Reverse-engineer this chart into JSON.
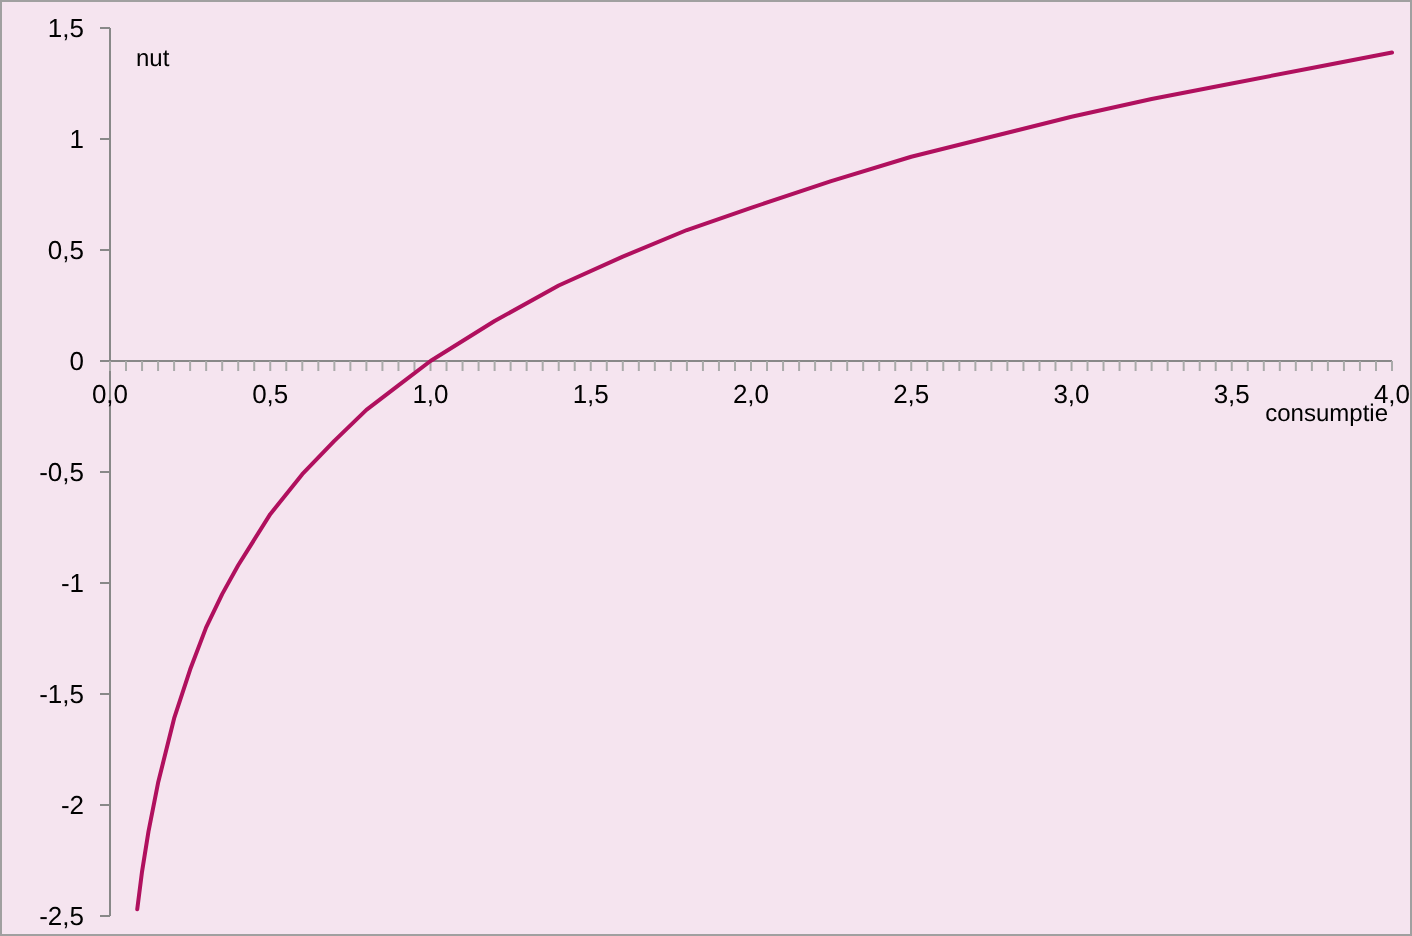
{
  "chart_data": {
    "type": "line",
    "xlabel": "consumptie",
    "ylabel": "nut",
    "x": [
      0.085,
      0.1,
      0.12,
      0.15,
      0.2,
      0.25,
      0.3,
      0.35,
      0.4,
      0.5,
      0.6,
      0.7,
      0.8,
      0.9,
      1.0,
      1.2,
      1.4,
      1.6,
      1.8,
      2.0,
      2.25,
      2.5,
      2.75,
      3.0,
      3.25,
      3.5,
      3.75,
      4.0
    ],
    "series": [
      {
        "color": "#b0105e",
        "values": [
          -2.47,
          -2.3,
          -2.12,
          -1.9,
          -1.61,
          -1.39,
          -1.2,
          -1.05,
          -0.92,
          -0.69,
          -0.51,
          -0.36,
          -0.22,
          -0.11,
          0,
          0.18,
          0.34,
          0.47,
          0.59,
          0.69,
          0.81,
          0.92,
          1.01,
          1.1,
          1.18,
          1.25,
          1.32,
          1.39
        ]
      }
    ],
    "xlim": [
      0,
      4
    ],
    "ylim": [
      -2.5,
      1.5
    ],
    "xticks": [
      {
        "value": 0,
        "label": "0,0"
      },
      {
        "value": 0.05,
        "label": null
      },
      {
        "value": 0.1,
        "label": null
      },
      {
        "value": 0.15,
        "label": null
      },
      {
        "value": 0.2,
        "label": null
      },
      {
        "value": 0.25,
        "label": null
      },
      {
        "value": 0.3,
        "label": null
      },
      {
        "value": 0.35,
        "label": null
      },
      {
        "value": 0.4,
        "label": null
      },
      {
        "value": 0.45,
        "label": null
      },
      {
        "value": 0.5,
        "label": "0,5"
      },
      {
        "value": 0.55,
        "label": null
      },
      {
        "value": 0.6,
        "label": null
      },
      {
        "value": 0.65,
        "label": null
      },
      {
        "value": 0.7,
        "label": null
      },
      {
        "value": 0.75,
        "label": null
      },
      {
        "value": 0.8,
        "label": null
      },
      {
        "value": 0.85,
        "label": null
      },
      {
        "value": 0.9,
        "label": null
      },
      {
        "value": 0.95,
        "label": null
      },
      {
        "value": 1.0,
        "label": "1,0"
      },
      {
        "value": 1.05,
        "label": null
      },
      {
        "value": 1.1,
        "label": null
      },
      {
        "value": 1.15,
        "label": null
      },
      {
        "value": 1.2,
        "label": null
      },
      {
        "value": 1.25,
        "label": null
      },
      {
        "value": 1.3,
        "label": null
      },
      {
        "value": 1.35,
        "label": null
      },
      {
        "value": 1.4,
        "label": null
      },
      {
        "value": 1.45,
        "label": null
      },
      {
        "value": 1.5,
        "label": "1,5"
      },
      {
        "value": 1.55,
        "label": null
      },
      {
        "value": 1.6,
        "label": null
      },
      {
        "value": 1.65,
        "label": null
      },
      {
        "value": 1.7,
        "label": null
      },
      {
        "value": 1.75,
        "label": null
      },
      {
        "value": 1.8,
        "label": null
      },
      {
        "value": 1.85,
        "label": null
      },
      {
        "value": 1.9,
        "label": null
      },
      {
        "value": 1.95,
        "label": null
      },
      {
        "value": 2.0,
        "label": "2,0"
      },
      {
        "value": 2.05,
        "label": null
      },
      {
        "value": 2.1,
        "label": null
      },
      {
        "value": 2.15,
        "label": null
      },
      {
        "value": 2.2,
        "label": null
      },
      {
        "value": 2.25,
        "label": null
      },
      {
        "value": 2.3,
        "label": null
      },
      {
        "value": 2.35,
        "label": null
      },
      {
        "value": 2.4,
        "label": null
      },
      {
        "value": 2.45,
        "label": null
      },
      {
        "value": 2.5,
        "label": "2,5"
      },
      {
        "value": 2.55,
        "label": null
      },
      {
        "value": 2.6,
        "label": null
      },
      {
        "value": 2.65,
        "label": null
      },
      {
        "value": 2.7,
        "label": null
      },
      {
        "value": 2.75,
        "label": null
      },
      {
        "value": 2.8,
        "label": null
      },
      {
        "value": 2.85,
        "label": null
      },
      {
        "value": 2.9,
        "label": null
      },
      {
        "value": 2.95,
        "label": null
      },
      {
        "value": 3.0,
        "label": "3,0"
      },
      {
        "value": 3.05,
        "label": null
      },
      {
        "value": 3.1,
        "label": null
      },
      {
        "value": 3.15,
        "label": null
      },
      {
        "value": 3.2,
        "label": null
      },
      {
        "value": 3.25,
        "label": null
      },
      {
        "value": 3.3,
        "label": null
      },
      {
        "value": 3.35,
        "label": null
      },
      {
        "value": 3.4,
        "label": null
      },
      {
        "value": 3.45,
        "label": null
      },
      {
        "value": 3.5,
        "label": "3,5"
      },
      {
        "value": 3.55,
        "label": null
      },
      {
        "value": 3.6,
        "label": null
      },
      {
        "value": 3.65,
        "label": null
      },
      {
        "value": 3.7,
        "label": null
      },
      {
        "value": 3.75,
        "label": null
      },
      {
        "value": 3.8,
        "label": null
      },
      {
        "value": 3.85,
        "label": null
      },
      {
        "value": 3.9,
        "label": null
      },
      {
        "value": 3.95,
        "label": null
      },
      {
        "value": 4.0,
        "label": "4,0"
      }
    ],
    "yticks": [
      {
        "value": 1.5,
        "label": "1,5"
      },
      1,
      {
        "value": 0.5,
        "label": "0,5"
      },
      0,
      {
        "value": -0.5,
        "label": "-0,5"
      },
      -1,
      {
        "value": -1.5,
        "label": "-1,5"
      },
      -2,
      {
        "value": -2.5,
        "label": "-2,5"
      }
    ],
    "grid": false,
    "line_style": "solid"
  }
}
